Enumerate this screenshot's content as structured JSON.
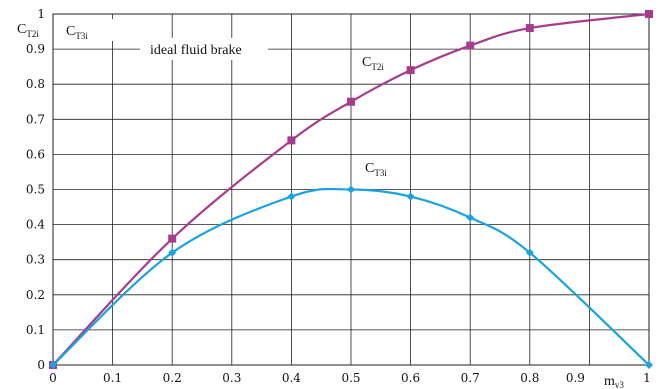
{
  "chart_data": {
    "type": "line",
    "title": "",
    "xlabel": {
      "main": "m",
      "sub": "v3"
    },
    "ylabel": {
      "main": "C",
      "sub": "T2i"
    },
    "ylabel_secondary": {
      "main": "C",
      "sub": "T3i"
    },
    "annotation": "ideal fluid brake",
    "xlim": [
      0,
      1
    ],
    "ylim": [
      0,
      1
    ],
    "grid": true,
    "x_ticks": [
      "0",
      "0.1",
      "0.2",
      "0.3",
      "0.4",
      "0.5",
      "0.6",
      "0.7",
      "0.8",
      "0.9",
      "1"
    ],
    "y_ticks": [
      "0",
      "0.1",
      "0.2",
      "0.3",
      "0.4",
      "0.5",
      "0.6",
      "0.7",
      "0.8",
      "0.9",
      "1"
    ],
    "x_tick_values": [
      0,
      0.1,
      0.2,
      0.3,
      0.4,
      0.5,
      0.6,
      0.7,
      0.8,
      0.9,
      1
    ],
    "y_tick_values": [
      0,
      0.1,
      0.2,
      0.3,
      0.4,
      0.5,
      0.6,
      0.7,
      0.8,
      0.9,
      1
    ],
    "series": [
      {
        "name": "C",
        "name_sub": "T2i",
        "color": "#a83c8c",
        "marker": "square",
        "x": [
          0,
          0.2,
          0.4,
          0.5,
          0.6,
          0.7,
          0.8,
          1
        ],
        "y": [
          0,
          0.36,
          0.64,
          0.75,
          0.84,
          0.91,
          0.96,
          1.0
        ]
      },
      {
        "name": "C",
        "name_sub": "T3i",
        "color": "#1aa3e0",
        "marker": "diamond",
        "x": [
          0,
          0.2,
          0.4,
          0.5,
          0.6,
          0.7,
          0.8,
          1
        ],
        "y": [
          0,
          0.32,
          0.48,
          0.5,
          0.48,
          0.42,
          0.32,
          0
        ]
      }
    ]
  }
}
